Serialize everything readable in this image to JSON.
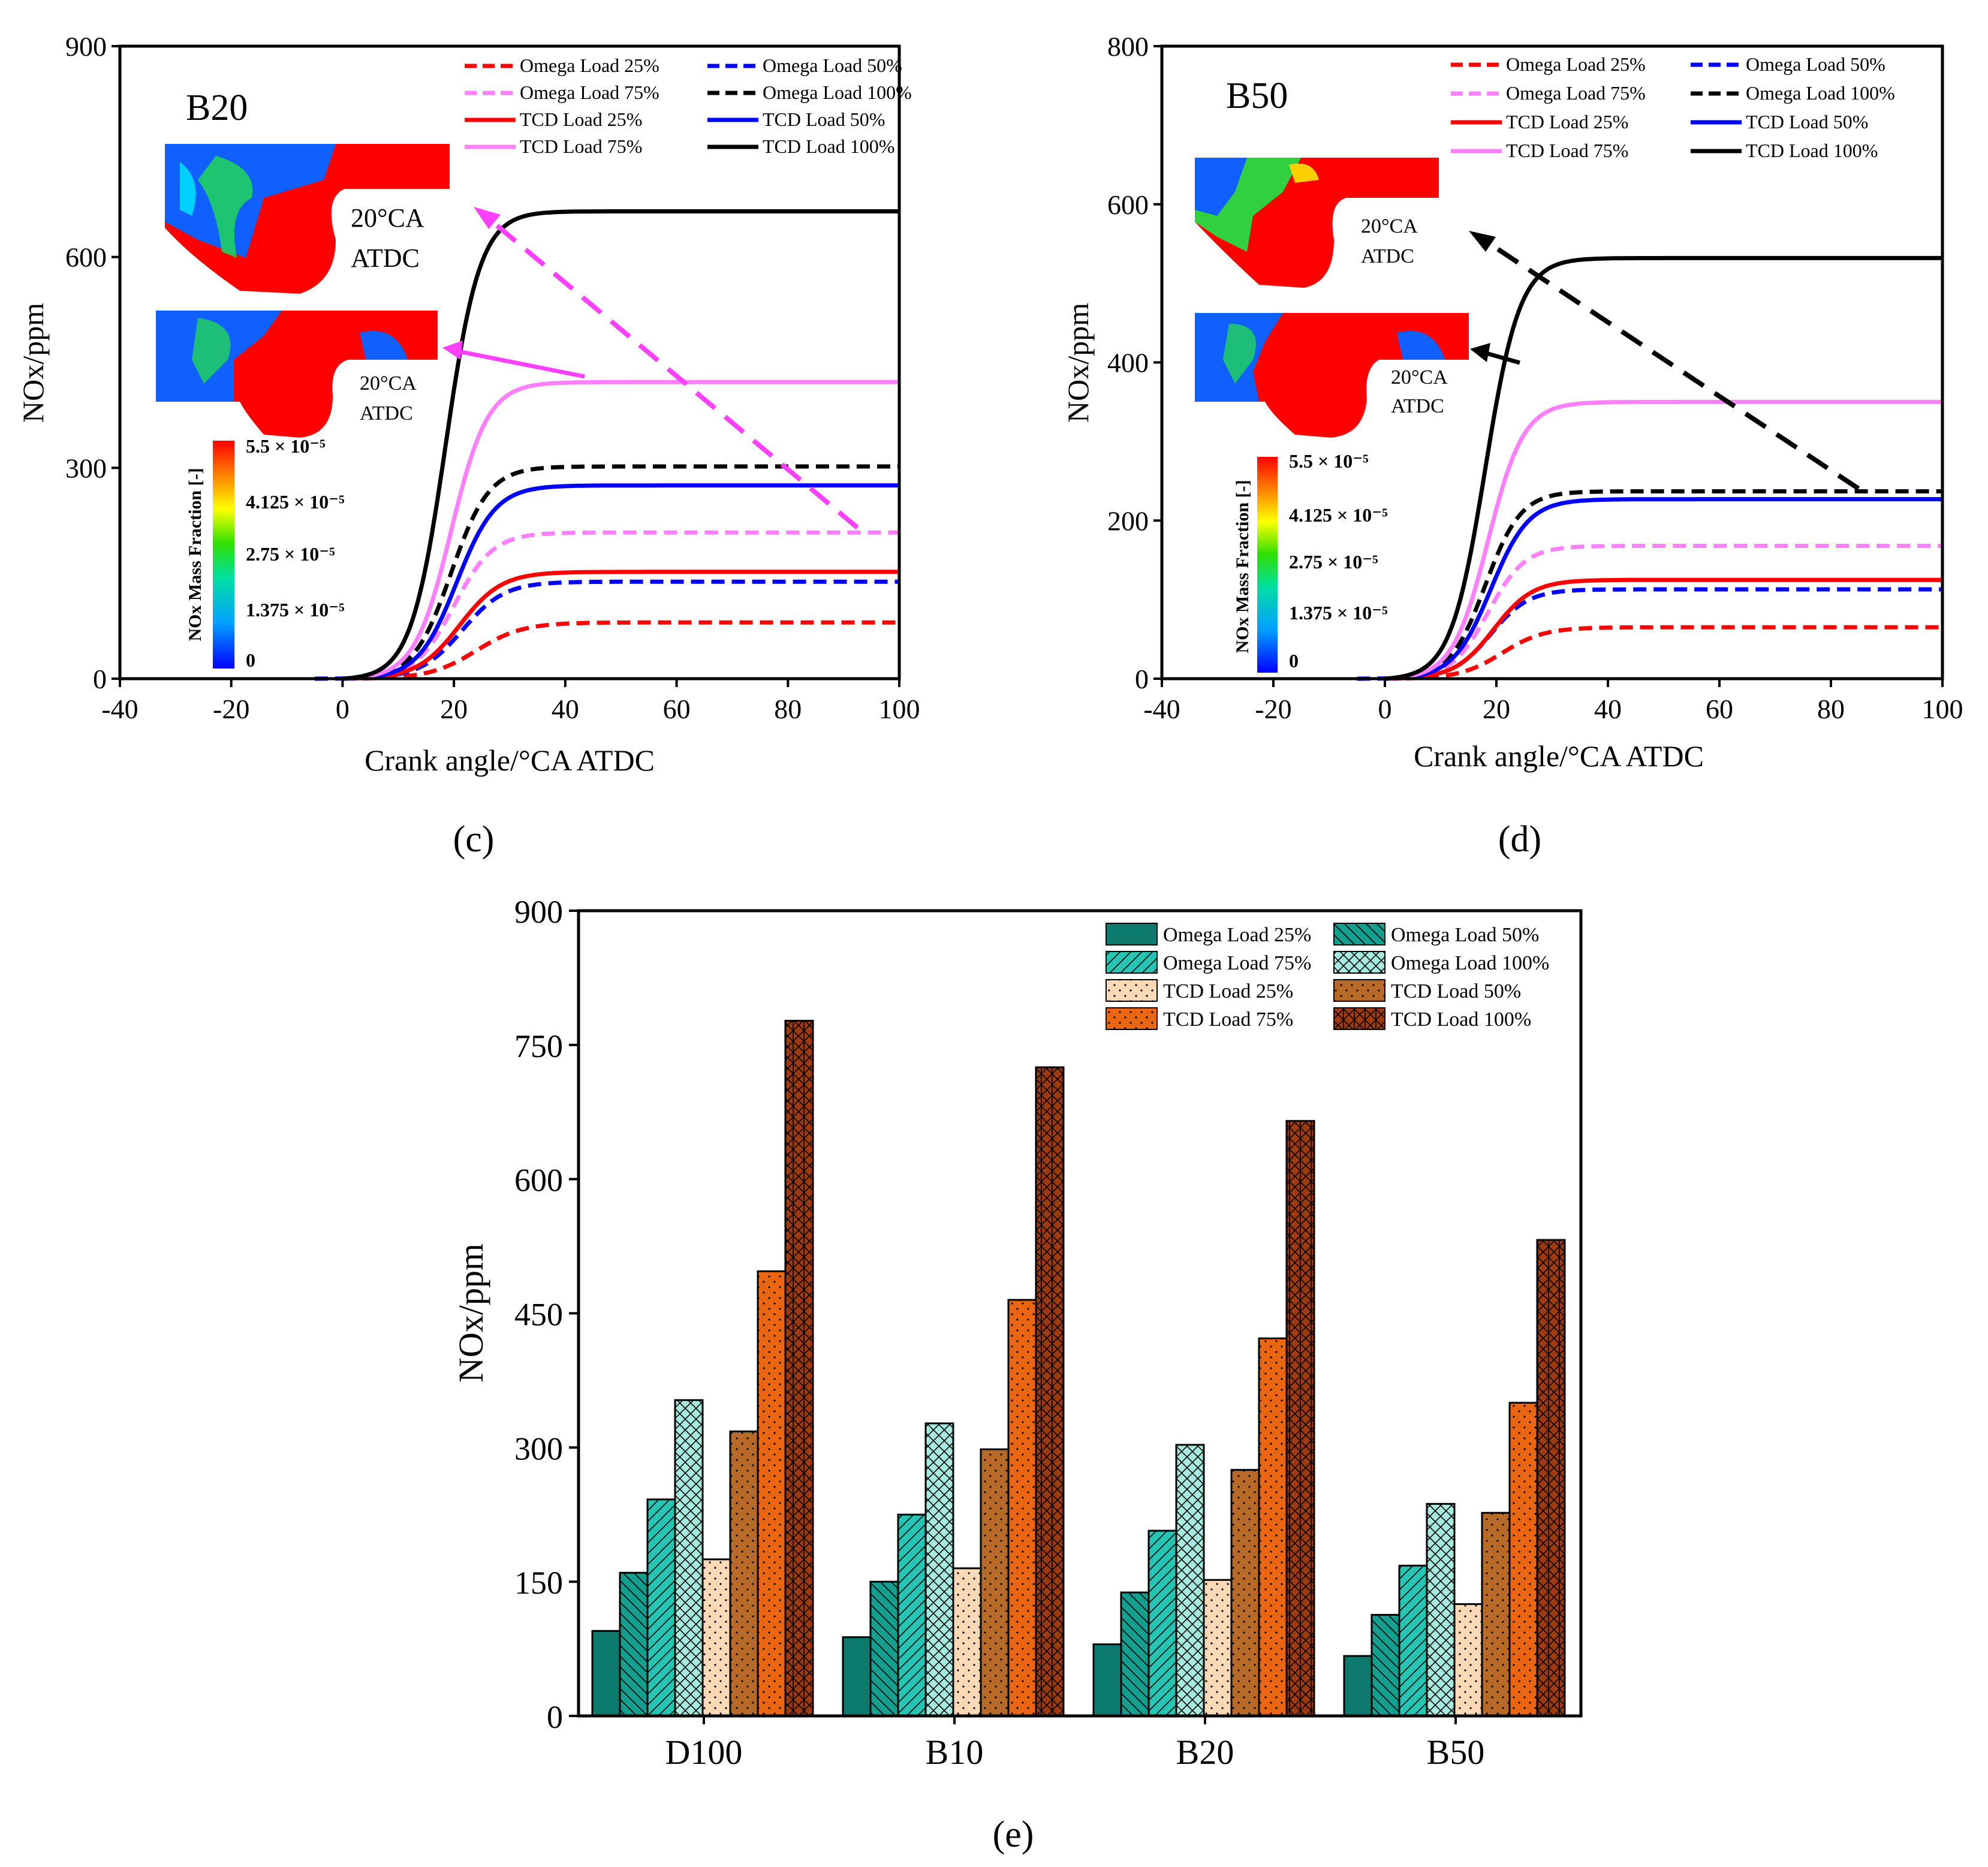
{
  "panels": [
    {
      "id": "c",
      "caption": "(c)",
      "fuel_label": "B20",
      "ylabel": "NOx/ppm",
      "xlabel": "Crank angle/°CA ATDC",
      "xlim": [
        -40,
        100
      ],
      "ylim": [
        0,
        900
      ],
      "xticks": [
        "-40",
        "-20",
        "0",
        "20",
        "40",
        "60",
        "80",
        "100"
      ],
      "yticks": [
        "0",
        "300",
        "600",
        "900"
      ],
      "inset_top_label": [
        "20°CA",
        "ATDC"
      ],
      "inset_bottom_label": [
        "20°CA",
        "ATDC"
      ],
      "colorbar": {
        "title": "NOx Mass Fraction [-]",
        "ticks": [
          "5.5 × 10⁻⁵",
          "4.125 × 10⁻⁵",
          "2.75 × 10⁻⁵",
          "1.375 × 10⁻⁵",
          "0"
        ]
      }
    },
    {
      "id": "d",
      "caption": "(d)",
      "fuel_label": "B50",
      "ylabel": "NOx/ppm",
      "xlabel": "Crank angle/°CA ATDC",
      "xlim": [
        -40,
        100
      ],
      "ylim": [
        0,
        800
      ],
      "xticks": [
        "-40",
        "-20",
        "0",
        "20",
        "40",
        "60",
        "80",
        "100"
      ],
      "yticks": [
        "0",
        "200",
        "400",
        "600",
        "800"
      ],
      "inset_top_label": [
        "20°CA",
        "ATDC"
      ],
      "inset_bottom_label": [
        "20°CA",
        "ATDC"
      ],
      "colorbar": {
        "title": "NOx Mass Fraction [-]",
        "ticks": [
          "5.5 × 10⁻⁵",
          "4.125 × 10⁻⁵",
          "2.75 × 10⁻⁵",
          "1.375 × 10⁻⁵",
          "0"
        ]
      }
    },
    {
      "id": "e",
      "caption": "(e)",
      "ylabel": "NOx/ppm",
      "yticks": [
        "0",
        "150",
        "300",
        "450",
        "600",
        "750",
        "900"
      ]
    }
  ],
  "legend_line": [
    {
      "label": "Omega Load 25%",
      "color": "#ff0000",
      "style": "dash"
    },
    {
      "label": "Omega Load 50%",
      "color": "#0000ff",
      "style": "dash"
    },
    {
      "label": "Omega Load 75%",
      "color": "#ff80ff",
      "style": "dash"
    },
    {
      "label": "Omega Load 100%",
      "color": "#000000",
      "style": "dash"
    },
    {
      "label": "TCD Load 25%",
      "color": "#ff0000",
      "style": "solid"
    },
    {
      "label": "TCD Load 50%",
      "color": "#0000ff",
      "style": "solid"
    },
    {
      "label": "TCD Load 75%",
      "color": "#ff80ff",
      "style": "solid"
    },
    {
      "label": "TCD Load 100%",
      "color": "#000000",
      "style": "solid"
    }
  ],
  "legend_bar": [
    {
      "label": "Omega Load 25%",
      "color": "#0d7a6e",
      "pattern": "solid"
    },
    {
      "label": "Omega Load 50%",
      "color": "#149e8e",
      "pattern": "back"
    },
    {
      "label": "Omega Load 75%",
      "color": "#25c4b3",
      "pattern": "fwd"
    },
    {
      "label": "Omega Load 100%",
      "color": "#a6eadf",
      "pattern": "cross"
    },
    {
      "label": "TCD Load 25%",
      "color": "#fcd9b6",
      "pattern": "dots"
    },
    {
      "label": "TCD Load 50%",
      "color": "#b86a28",
      "pattern": "dots"
    },
    {
      "label": "TCD Load 75%",
      "color": "#ea6612",
      "pattern": "dots"
    },
    {
      "label": "TCD Load 100%",
      "color": "#9e3a10",
      "pattern": "grid"
    }
  ],
  "chart_data": [
    {
      "type": "line",
      "panel": "c",
      "title": "B20",
      "xlabel": "Crank angle/°CA ATDC",
      "ylabel": "NOx/ppm",
      "xlim": [
        -40,
        100
      ],
      "ylim": [
        0,
        900
      ],
      "curve_form": "sigmoid rise from 0 after ~8 °CA to a plateau",
      "series": [
        {
          "name": "Omega Load 25%",
          "final": 80,
          "mid": 24,
          "rate": 4.2
        },
        {
          "name": "Omega Load 50%",
          "final": 138,
          "mid": 21.5,
          "rate": 3.8
        },
        {
          "name": "Omega Load 75%",
          "final": 208,
          "mid": 20,
          "rate": 3.5
        },
        {
          "name": "Omega Load 100%",
          "final": 302,
          "mid": 19.5,
          "rate": 3.4
        },
        {
          "name": "TCD Load 25%",
          "final": 152,
          "mid": 21,
          "rate": 3.8
        },
        {
          "name": "TCD Load 50%",
          "final": 275,
          "mid": 20.5,
          "rate": 3.5
        },
        {
          "name": "TCD Load 75%",
          "final": 422,
          "mid": 19.5,
          "rate": 3.3
        },
        {
          "name": "TCD Load 100%",
          "final": 665,
          "mid": 18.5,
          "rate": 3.1
        }
      ]
    },
    {
      "type": "line",
      "panel": "d",
      "title": "B50",
      "xlabel": "Crank angle/°CA ATDC",
      "ylabel": "NOx/ppm",
      "xlim": [
        -40,
        100
      ],
      "ylim": [
        0,
        800
      ],
      "curve_form": "sigmoid rise from 0 after ~8 °CA to a plateau",
      "series": [
        {
          "name": "Omega Load 25%",
          "final": 65,
          "mid": 21,
          "rate": 3.8
        },
        {
          "name": "Omega Load 50%",
          "final": 113,
          "mid": 19,
          "rate": 3.4
        },
        {
          "name": "Omega Load 75%",
          "final": 168,
          "mid": 18.5,
          "rate": 3.3
        },
        {
          "name": "Omega Load 100%",
          "final": 237,
          "mid": 18,
          "rate": 3.2
        },
        {
          "name": "TCD Load 25%",
          "final": 125,
          "mid": 19.5,
          "rate": 3.5
        },
        {
          "name": "TCD Load 50%",
          "final": 227,
          "mid": 19,
          "rate": 3.4
        },
        {
          "name": "TCD Load 75%",
          "final": 350,
          "mid": 18.5,
          "rate": 3.2
        },
        {
          "name": "TCD Load 100%",
          "final": 532,
          "mid": 18,
          "rate": 3.1
        }
      ]
    },
    {
      "type": "bar",
      "panel": "e",
      "ylabel": "NOx/ppm",
      "ylim": [
        0,
        900
      ],
      "categories": [
        "D100",
        "B10",
        "B20",
        "B50"
      ],
      "series": [
        {
          "name": "Omega Load 25%",
          "values": [
            95,
            88,
            80,
            67
          ]
        },
        {
          "name": "Omega Load 50%",
          "values": [
            160,
            150,
            138,
            113
          ]
        },
        {
          "name": "Omega Load 75%",
          "values": [
            242,
            225,
            207,
            168
          ]
        },
        {
          "name": "Omega Load 100%",
          "values": [
            353,
            327,
            303,
            237
          ]
        },
        {
          "name": "TCD Load 25%",
          "values": [
            175,
            165,
            152,
            125
          ]
        },
        {
          "name": "TCD Load 50%",
          "values": [
            318,
            298,
            275,
            227
          ]
        },
        {
          "name": "TCD Load 75%",
          "values": [
            497,
            465,
            422,
            350
          ]
        },
        {
          "name": "TCD Load 100%",
          "values": [
            777,
            725,
            665,
            532
          ]
        }
      ]
    }
  ]
}
